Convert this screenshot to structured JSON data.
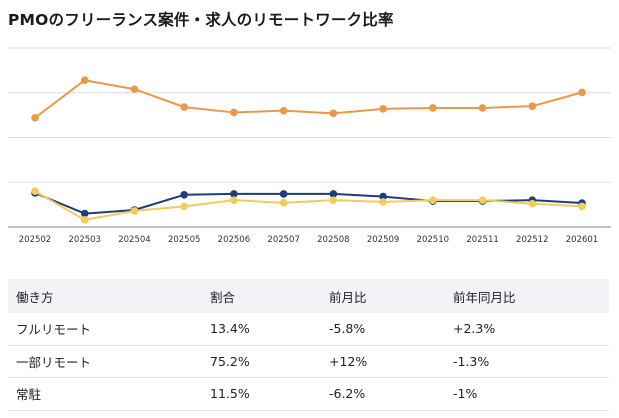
{
  "title": "PMOのフリーランス案件・求人のリモートワーク比率",
  "chart_data": {
    "type": "line",
    "title": "PMOのフリーランス案件・求人のリモートワーク比率",
    "categories": [
      "202502",
      "202503",
      "202504",
      "202505",
      "202506",
      "202507",
      "202508",
      "202509",
      "202510",
      "202511",
      "202512",
      "202601"
    ],
    "ylim": [
      0,
      100
    ],
    "grid": true,
    "series": [
      {
        "name": "一部リモート",
        "color": "#e8994a",
        "values": [
          61,
          82,
          77,
          67,
          64,
          65,
          63.5,
          66,
          66.5,
          66.5,
          67.5,
          75.2
        ]
      },
      {
        "name": "フルリモート",
        "color": "#1f3d7a",
        "values": [
          19,
          7.5,
          9.5,
          18,
          18.5,
          18.5,
          18.5,
          17,
          14.5,
          14.5,
          15,
          13.4
        ]
      },
      {
        "name": "常駐",
        "color": "#f0cc5e",
        "values": [
          20,
          4,
          9,
          11.5,
          15,
          13.5,
          15,
          14,
          15,
          15,
          13,
          11.5
        ]
      }
    ]
  },
  "table": {
    "headers": [
      "働き方",
      "割合",
      "前月比",
      "前年同月比"
    ],
    "rows": [
      [
        "フルリモート",
        "13.4%",
        "-5.8%",
        "+2.3%"
      ],
      [
        "一部リモート",
        "75.2%",
        "+12%",
        "-1.3%"
      ],
      [
        "常駐",
        "11.5%",
        "-6.2%",
        "-1%"
      ]
    ]
  }
}
